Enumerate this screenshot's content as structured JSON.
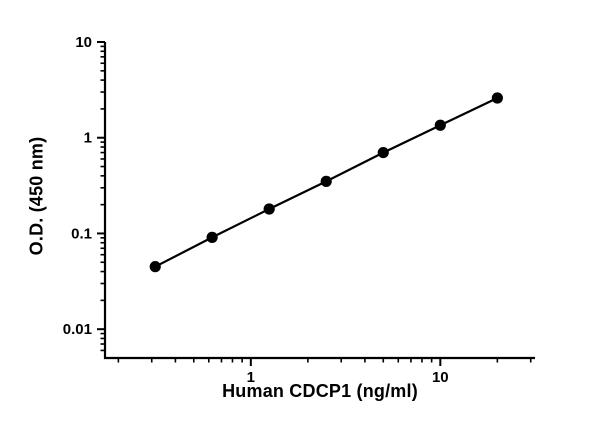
{
  "figure": {
    "background_color": "#ffffff",
    "ink_color": "#000000"
  },
  "chart_data": {
    "type": "scatter",
    "title": "",
    "xlabel": "Human CDCP1 (ng/ml)",
    "ylabel": "O.D. (450 nm)",
    "x_scale": "log",
    "y_scale": "log",
    "xlim": [
      0.17,
      31.6
    ],
    "ylim": [
      0.005,
      10
    ],
    "grid": false,
    "legend_position": "none",
    "x_ticks": [
      {
        "value": 1,
        "label": "1"
      },
      {
        "value": 10,
        "label": "10"
      }
    ],
    "y_ticks": [
      {
        "value": 10,
        "label": "10"
      },
      {
        "value": 1,
        "label": "1"
      },
      {
        "value": 0.1,
        "label": "0.1"
      },
      {
        "value": 0.01,
        "label": "0.01"
      }
    ],
    "series": [
      {
        "marker": "filled-circle",
        "marker_radius": 5.6,
        "color": "#000000",
        "line": true,
        "line_width": 2.2,
        "points": [
          {
            "x": 0.313,
            "y": 0.045
          },
          {
            "x": 0.625,
            "y": 0.091
          },
          {
            "x": 1.25,
            "y": 0.18
          },
          {
            "x": 2.5,
            "y": 0.35
          },
          {
            "x": 5,
            "y": 0.7
          },
          {
            "x": 10,
            "y": 1.35
          },
          {
            "x": 20,
            "y": 2.6
          }
        ]
      }
    ]
  }
}
